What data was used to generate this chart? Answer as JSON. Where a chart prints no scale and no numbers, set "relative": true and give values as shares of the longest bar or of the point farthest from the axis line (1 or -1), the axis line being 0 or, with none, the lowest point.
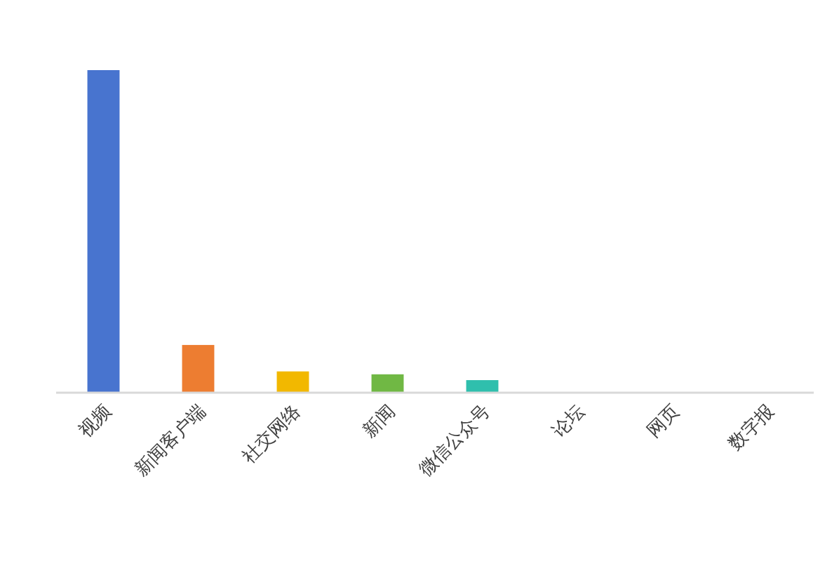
{
  "chart_data": {
    "type": "bar",
    "relative": true,
    "categories": [
      "视频",
      "新闻客户端",
      "社交网络",
      "新闻",
      "微信公众号",
      "论坛",
      "网页",
      "数字报"
    ],
    "values": [
      1,
      0.148,
      0.066,
      0.057,
      0.039,
      0,
      0,
      0
    ],
    "colors": [
      "#4874cf",
      "#ed7d31",
      "#f2b800",
      "#70b844",
      "#2fbfad",
      "#5b9bd5",
      "#a5a5a5",
      "#264478"
    ]
  }
}
